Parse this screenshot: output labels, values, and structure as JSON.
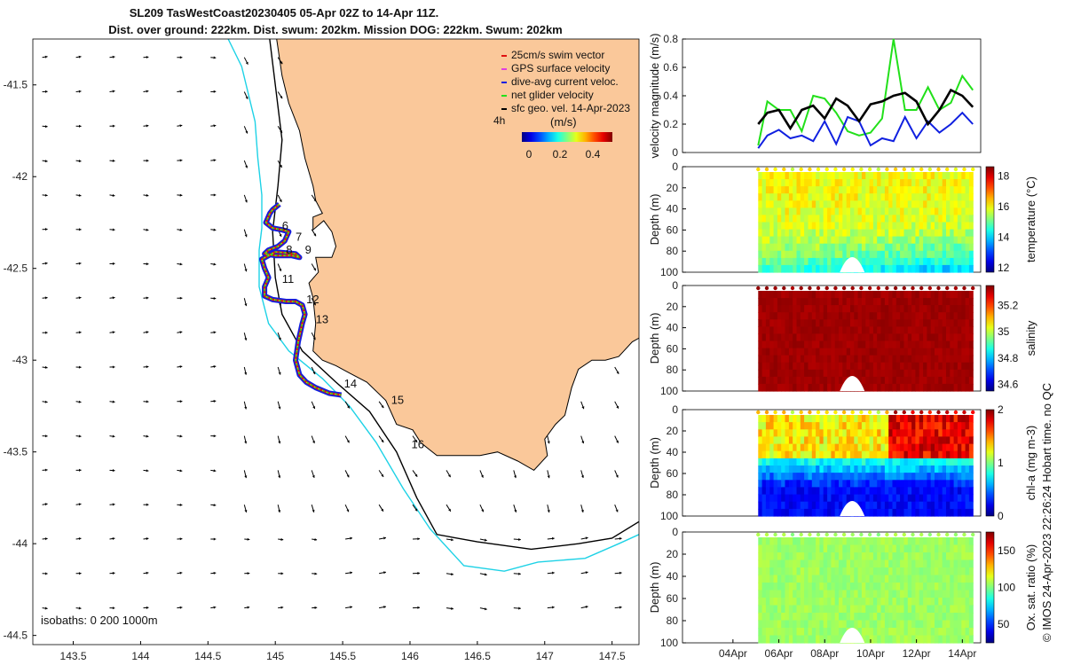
{
  "title": {
    "line1": "SL209 TasWestCoast20230405 05-Apr 02Z to 14-Apr 11Z.",
    "line2": "Dist. over ground: 222km. Dist. swum: 202km. Mission DOG: 222km. Swum: 202km"
  },
  "credit": "© IMOS 24-Apr-2023 22:26:24 Hobart time. no QC",
  "colors": {
    "land": "#FAC89A",
    "coast": "#000000",
    "isobath200": "#1ED2E6",
    "isobath1000": "#000000",
    "swim": "#E01010",
    "gps": "#E040E0",
    "current": "#1020E0",
    "net": "#22E01A",
    "geo": "#000000"
  },
  "map": {
    "xlim": [
      143.2,
      147.7
    ],
    "ylim": [
      -44.55,
      -41.25
    ],
    "xticks": [
      "143.5",
      "144",
      "144.5",
      "145",
      "145.5",
      "146",
      "146.5",
      "147",
      "147.5"
    ],
    "yticks": [
      "-41.5",
      "-42",
      "-42.5",
      "-43",
      "-43.5",
      "-44",
      "-44.5"
    ],
    "isobath_label": "isobaths: 0   200  1000m",
    "day_markers": [
      {
        "label": "6",
        "lon": 145.05,
        "lat": -42.27
      },
      {
        "label": "7",
        "lon": 145.15,
        "lat": -42.33
      },
      {
        "label": "8",
        "lon": 145.08,
        "lat": -42.4
      },
      {
        "label": "9",
        "lon": 145.22,
        "lat": -42.4
      },
      {
        "label": "11",
        "lon": 145.05,
        "lat": -42.56
      },
      {
        "label": "12",
        "lon": 145.23,
        "lat": -42.67
      },
      {
        "label": "13",
        "lon": 145.3,
        "lat": -42.78
      },
      {
        "label": "14",
        "lon": 145.51,
        "lat": -43.13
      },
      {
        "label": "15",
        "lon": 145.86,
        "lat": -43.22
      },
      {
        "label": "16",
        "lon": 146.01,
        "lat": -43.46
      }
    ],
    "legend": {
      "items": [
        "25cm/s swim vector",
        "GPS surface velocity",
        "dive-avg current veloc.",
        "net glider velocity",
        "sfc geo. vel. 14-Apr-2023"
      ],
      "interval": "4h",
      "unit": "(m/s)",
      "colorbar_ticks": [
        "0",
        "0.2",
        "0.4"
      ]
    }
  },
  "chart_data": [
    {
      "type": "line",
      "title": "",
      "ylabel": "velocity magnitude (m/s)",
      "ylim": [
        0,
        0.8
      ],
      "yticks": [
        "0",
        "0.2",
        "0.4",
        "0.6",
        "0.8"
      ],
      "x_days": [
        5.1,
        5.5,
        6.0,
        6.5,
        7.0,
        7.5,
        8.0,
        8.5,
        9.0,
        9.5,
        10.0,
        10.5,
        11.0,
        11.5,
        12.0,
        12.5,
        13.0,
        13.5,
        14.0,
        14.46
      ],
      "series": [
        {
          "name": "net glider velocity",
          "color": "#22E01A",
          "values": [
            0.05,
            0.36,
            0.3,
            0.3,
            0.15,
            0.4,
            0.38,
            0.28,
            0.15,
            0.12,
            0.14,
            0.24,
            0.8,
            0.3,
            0.3,
            0.46,
            0.3,
            0.35,
            0.54,
            0.44
          ]
        },
        {
          "name": "dive-avg current veloc.",
          "color": "#1020E0",
          "values": [
            0.03,
            0.12,
            0.16,
            0.1,
            0.12,
            0.08,
            0.22,
            0.06,
            0.25,
            0.22,
            0.05,
            0.1,
            0.08,
            0.25,
            0.1,
            0.22,
            0.14,
            0.2,
            0.28,
            0.2
          ]
        },
        {
          "name": "sfc geo. vel.",
          "color": "#000000",
          "values": [
            0.2,
            0.28,
            0.3,
            0.17,
            0.3,
            0.33,
            0.24,
            0.38,
            0.33,
            0.22,
            0.34,
            0.36,
            0.4,
            0.42,
            0.36,
            0.2,
            0.3,
            0.44,
            0.4,
            0.32
          ]
        }
      ]
    },
    {
      "type": "heatmap",
      "ylabel": "Depth (m)",
      "cbar_label": "temperature (°C)",
      "clim": [
        11.7,
        18.6
      ],
      "cbar_ticks": [
        "12",
        "14",
        "16",
        "18"
      ],
      "depth_ticks": [
        "0",
        "20",
        "40",
        "60",
        "80",
        "100"
      ],
      "dominant": "yellow-green surface, cyan-blue near bottom"
    },
    {
      "type": "heatmap",
      "ylabel": "Depth (m)",
      "cbar_label": "salinity",
      "clim": [
        34.55,
        35.35
      ],
      "cbar_ticks": [
        "34.6",
        "34.8",
        "35",
        "35.2"
      ],
      "depth_ticks": [
        "0",
        "20",
        "40",
        "60",
        "80",
        "100"
      ],
      "dominant": "dark red throughout"
    },
    {
      "type": "heatmap",
      "ylabel": "Depth (m)",
      "cbar_label": "chl-a (mg m-3)",
      "clim": [
        0,
        2
      ],
      "cbar_ticks": [
        "0",
        "1",
        "2"
      ],
      "depth_ticks": [
        "0",
        "20",
        "40",
        "60",
        "80",
        "100"
      ],
      "dominant": "green/orange surface, dark blue at depth"
    },
    {
      "type": "heatmap",
      "ylabel": "Depth (m)",
      "cbar_label": "Ox. sat. ratio (%)",
      "clim": [
        25,
        175
      ],
      "cbar_ticks": [
        "50",
        "100",
        "150"
      ],
      "depth_ticks": [
        "0",
        "20",
        "40",
        "60",
        "80",
        "100"
      ],
      "dominant": "uniform green"
    }
  ],
  "time_axis": {
    "xlim_days": [
      1.8,
      14.8
    ],
    "ticks": [
      {
        "label": "04Apr",
        "day": 4
      },
      {
        "label": "06Apr",
        "day": 6
      },
      {
        "label": "08Apr",
        "day": 8
      },
      {
        "label": "10Apr",
        "day": 10
      },
      {
        "label": "12Apr",
        "day": 12
      },
      {
        "label": "14Apr",
        "day": 14
      }
    ]
  }
}
